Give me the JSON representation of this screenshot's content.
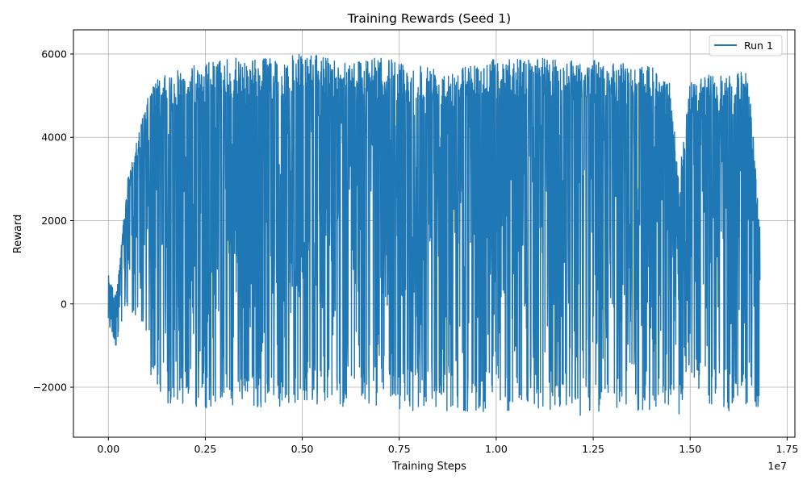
{
  "chart_data": {
    "type": "line",
    "title": "Training Rewards (Seed 1)",
    "xlabel": "Training Steps",
    "ylabel": "Reward",
    "x_offset_label": "1e7",
    "x_scale": 10000000,
    "xlim": [
      -0.09,
      1.77
    ],
    "ylim": [
      -3200,
      6580
    ],
    "x_ticks": [
      0.0,
      0.25,
      0.5,
      0.75,
      1.0,
      1.25,
      1.5,
      1.75
    ],
    "x_tick_labels": [
      "0.00",
      "0.25",
      "0.50",
      "0.75",
      "1.00",
      "1.25",
      "1.50",
      "1.75"
    ],
    "y_ticks": [
      -2000,
      0,
      2000,
      4000,
      6000
    ],
    "y_tick_labels": [
      "−2000",
      "0",
      "2000",
      "4000",
      "6000"
    ],
    "grid": true,
    "legend_position": "top-right",
    "series": [
      {
        "name": "Run 1",
        "color": "#1f77b4",
        "x_end": 1.68,
        "envelope": {
          "x": [
            0.0,
            0.02,
            0.05,
            0.08,
            0.1,
            0.12,
            0.15,
            0.2,
            0.25,
            0.3,
            0.4,
            0.5,
            0.6,
            0.7,
            0.8,
            0.9,
            1.0,
            1.1,
            1.2,
            1.3,
            1.4,
            1.45,
            1.47,
            1.5,
            1.55,
            1.6,
            1.65,
            1.68
          ],
          "upper": [
            700,
            200,
            3000,
            4200,
            4900,
            5400,
            5500,
            5700,
            5800,
            5900,
            5900,
            6000,
            5900,
            5900,
            5800,
            5700,
            5900,
            5900,
            5900,
            5800,
            5700,
            5300,
            3000,
            5300,
            5500,
            5500,
            5600,
            1900
          ],
          "lower": [
            -800,
            -1000,
            -200,
            -500,
            -1200,
            -2300,
            -2400,
            -2500,
            -2500,
            -2500,
            -2500,
            -2400,
            -2500,
            -2500,
            -2600,
            -2600,
            -2600,
            -2600,
            -2700,
            -2600,
            -2600,
            -2700,
            -2700,
            -2000,
            -2500,
            -2600,
            -2600,
            -2600
          ]
        }
      }
    ]
  }
}
